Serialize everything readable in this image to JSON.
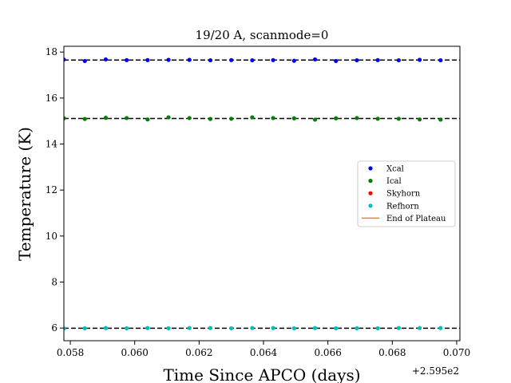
{
  "chart_data": {
    "type": "scatter",
    "title": "19/20 A, scanmode=0",
    "xlabel": "Time Since APCO (days)",
    "ylabel": "Temperature (K)",
    "x_offset_label": "+2.595e2",
    "xlim": [
      0.0578,
      0.0701
    ],
    "ylim": [
      5.45,
      18.25
    ],
    "x_ticks": [
      0.058,
      0.06,
      0.062,
      0.064,
      0.066,
      0.068,
      0.07
    ],
    "x_tick_labels": [
      "0.058",
      "0.060",
      "0.062",
      "0.064",
      "0.066",
      "0.068",
      "0.070"
    ],
    "y_ticks": [
      6,
      8,
      10,
      12,
      14,
      16,
      18
    ],
    "y_tick_labels": [
      "6",
      "8",
      "10",
      "12",
      "14",
      "16",
      "18"
    ],
    "x": [
      0.0578,
      0.05845,
      0.0591,
      0.05975,
      0.0604,
      0.06105,
      0.0617,
      0.06235,
      0.063,
      0.06365,
      0.0643,
      0.06495,
      0.0656,
      0.06625,
      0.0669,
      0.06755,
      0.0682,
      0.06885,
      0.0695,
      0.07015
    ],
    "series": [
      {
        "name": "Xcal",
        "color": "#0000ff",
        "marker": "point",
        "values": [
          17.67,
          17.61,
          17.68,
          17.65,
          17.65,
          17.66,
          17.66,
          17.64,
          17.65,
          17.64,
          17.65,
          17.62,
          17.68,
          17.61,
          17.64,
          17.65,
          17.64,
          17.66,
          17.64,
          17.59
        ]
      },
      {
        "name": "Ical",
        "color": "#008000",
        "marker": "point",
        "values": [
          15.12,
          15.09,
          15.14,
          15.13,
          15.07,
          15.16,
          15.13,
          15.09,
          15.1,
          15.16,
          15.13,
          15.12,
          15.06,
          15.12,
          15.13,
          15.1,
          15.1,
          15.07,
          15.06,
          15.15
        ]
      },
      {
        "name": "Skyhorn",
        "color": "#ff0000",
        "marker": "point",
        "values": []
      },
      {
        "name": "Refhorn",
        "color": "#00bfbf",
        "marker": "point",
        "values": [
          5.98,
          5.99,
          6.0,
          5.99,
          6.0,
          5.99,
          6.0,
          6.0,
          5.99,
          6.0,
          6.0,
          5.99,
          6.0,
          5.99,
          5.99,
          5.99,
          6.0,
          6.0,
          6.0,
          6.0
        ]
      },
      {
        "name": "End of Plateau",
        "color": "#ff7f0e",
        "marker": "line",
        "values": []
      }
    ],
    "reference_lines": [
      {
        "y": 17.65,
        "color": "#000000",
        "style": "dashed"
      },
      {
        "y": 15.11,
        "color": "#000000",
        "style": "dashed"
      },
      {
        "y": 5.99,
        "color": "#000000",
        "style": "dashed"
      }
    ],
    "grid": false,
    "legend_position": "center-right"
  }
}
